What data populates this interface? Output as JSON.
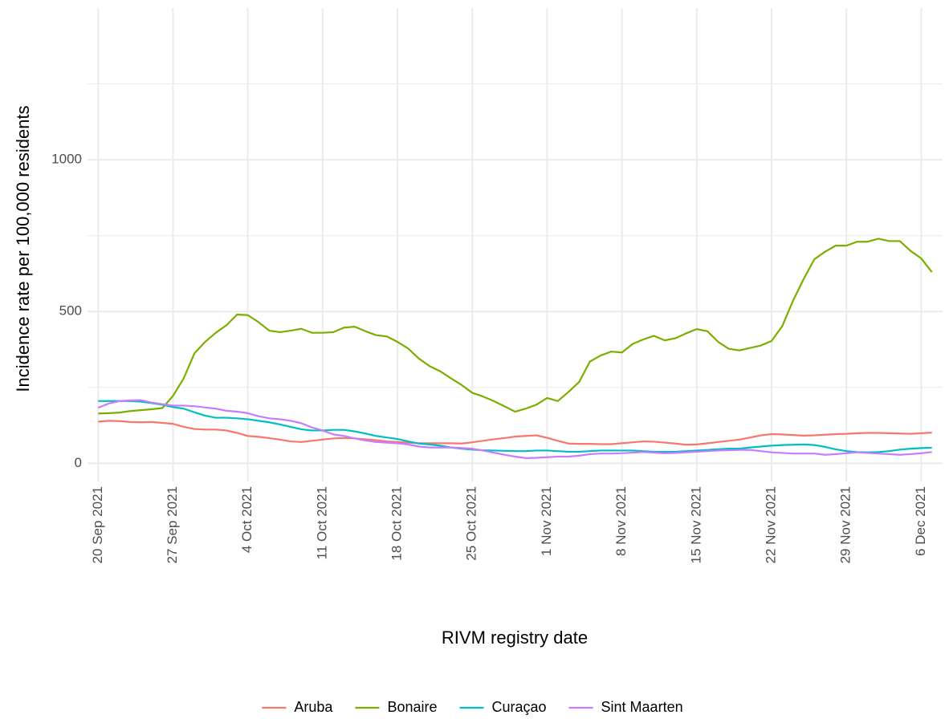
{
  "chart_data": {
    "type": "line",
    "x_label": "RIVM registry date",
    "y_label": "Incidence rate per 100,000 residents",
    "x": [
      "2021-09-20",
      "2021-09-21",
      "2021-09-22",
      "2021-09-23",
      "2021-09-24",
      "2021-09-25",
      "2021-09-26",
      "2021-09-27",
      "2021-09-28",
      "2021-09-29",
      "2021-09-30",
      "2021-10-01",
      "2021-10-02",
      "2021-10-03",
      "2021-10-04",
      "2021-10-05",
      "2021-10-06",
      "2021-10-07",
      "2021-10-08",
      "2021-10-09",
      "2021-10-10",
      "2021-10-11",
      "2021-10-12",
      "2021-10-13",
      "2021-10-14",
      "2021-10-15",
      "2021-10-16",
      "2021-10-17",
      "2021-10-18",
      "2021-10-19",
      "2021-10-20",
      "2021-10-21",
      "2021-10-22",
      "2021-10-23",
      "2021-10-24",
      "2021-10-25",
      "2021-10-26",
      "2021-10-27",
      "2021-10-28",
      "2021-10-29",
      "2021-10-30",
      "2021-10-31",
      "2021-11-01",
      "2021-11-02",
      "2021-11-03",
      "2021-11-04",
      "2021-11-05",
      "2021-11-06",
      "2021-11-07",
      "2021-11-08",
      "2021-11-09",
      "2021-11-10",
      "2021-11-11",
      "2021-11-12",
      "2021-11-13",
      "2021-11-14",
      "2021-11-15",
      "2021-11-16",
      "2021-11-17",
      "2021-11-18",
      "2021-11-19",
      "2021-11-20",
      "2021-11-21",
      "2021-11-22",
      "2021-11-23",
      "2021-11-24",
      "2021-11-25",
      "2021-11-26",
      "2021-11-27",
      "2021-11-28",
      "2021-11-29",
      "2021-11-30",
      "2021-12-01",
      "2021-12-02",
      "2021-12-03",
      "2021-12-04",
      "2021-12-05",
      "2021-12-06",
      "2021-12-07"
    ],
    "series": [
      {
        "name": "Aruba",
        "color": "#F8766D",
        "values": [
          137,
          140,
          139,
          136,
          135,
          136,
          133,
          130,
          120,
          113,
          111,
          111,
          108,
          100,
          90,
          87,
          83,
          78,
          72,
          70,
          74,
          78,
          82,
          83,
          82,
          79,
          76,
          72,
          70,
          68,
          66,
          66,
          66,
          66,
          65,
          69,
          74,
          79,
          83,
          88,
          90,
          92,
          84,
          74,
          65,
          64,
          64,
          63,
          63,
          66,
          69,
          72,
          71,
          68,
          65,
          61,
          62,
          66,
          70,
          74,
          78,
          85,
          92,
          96,
          95,
          93,
          91,
          92,
          94,
          96,
          97,
          99,
          100,
          100,
          99,
          98,
          97,
          99,
          101
        ]
      },
      {
        "name": "Bonaire",
        "color": "#7CAE00",
        "values": [
          164,
          165,
          167,
          172,
          175,
          178,
          182,
          222,
          280,
          362,
          400,
          430,
          455,
          490,
          488,
          465,
          437,
          432,
          437,
          443,
          430,
          430,
          432,
          447,
          450,
          435,
          422,
          418,
          400,
          378,
          345,
          320,
          303,
          280,
          258,
          232,
          220,
          205,
          188,
          170,
          180,
          193,
          215,
          205,
          235,
          268,
          335,
          355,
          368,
          365,
          393,
          408,
          420,
          405,
          412,
          428,
          442,
          435,
          400,
          377,
          372,
          380,
          388,
          403,
          452,
          535,
          607,
          672,
          697,
          717,
          717,
          730,
          730,
          740,
          732,
          732,
          700,
          675,
          630
        ]
      },
      {
        "name": "Curaçao",
        "color": "#00BFC4",
        "values": [
          205,
          205,
          205,
          205,
          203,
          198,
          193,
          185,
          180,
          168,
          157,
          150,
          150,
          148,
          145,
          140,
          135,
          128,
          120,
          112,
          108,
          108,
          110,
          110,
          105,
          98,
          90,
          85,
          80,
          72,
          65,
          62,
          58,
          52,
          48,
          45,
          43,
          42,
          41,
          40,
          40,
          42,
          42,
          40,
          38,
          38,
          40,
          42,
          42,
          42,
          42,
          40,
          38,
          38,
          38,
          40,
          42,
          44,
          46,
          48,
          48,
          52,
          55,
          58,
          60,
          61,
          62,
          60,
          54,
          46,
          40,
          37,
          36,
          37,
          40,
          45,
          48,
          50,
          51
        ]
      },
      {
        "name": "Sint Maarten",
        "color": "#C77CFF",
        "values": [
          183,
          197,
          205,
          207,
          208,
          200,
          195,
          190,
          190,
          188,
          184,
          180,
          173,
          170,
          165,
          155,
          148,
          145,
          140,
          132,
          118,
          108,
          95,
          90,
          82,
          75,
          70,
          68,
          66,
          62,
          55,
          52,
          52,
          52,
          50,
          48,
          42,
          35,
          28,
          22,
          17,
          18,
          20,
          22,
          22,
          25,
          30,
          32,
          32,
          33,
          35,
          37,
          35,
          33,
          34,
          36,
          38,
          40,
          42,
          43,
          44,
          44,
          40,
          36,
          34,
          32,
          32,
          32,
          28,
          30,
          33,
          36,
          34,
          32,
          30,
          28,
          30,
          33,
          37
        ]
      }
    ],
    "xlim": [
      "2021-09-19",
      "2021-12-08"
    ],
    "xticks": [
      {
        "value": "2021-09-20",
        "label": "20 Sep 2021"
      },
      {
        "value": "2021-09-27",
        "label": "27 Sep 2021"
      },
      {
        "value": "2021-10-04",
        "label": "4 Oct 2021"
      },
      {
        "value": "2021-10-11",
        "label": "11 Oct 2021"
      },
      {
        "value": "2021-10-18",
        "label": "18 Oct 2021"
      },
      {
        "value": "2021-10-25",
        "label": "25 Oct 2021"
      },
      {
        "value": "2021-11-01",
        "label": "1 Nov 2021"
      },
      {
        "value": "2021-11-08",
        "label": "8 Nov 2021"
      },
      {
        "value": "2021-11-15",
        "label": "15 Nov 2021"
      },
      {
        "value": "2021-11-22",
        "label": "22 Nov 2021"
      },
      {
        "value": "2021-11-29",
        "label": "29 Nov 2021"
      },
      {
        "value": "2021-12-06",
        "label": "6 Dec 2021"
      }
    ],
    "ylim": [
      -60,
      1500
    ],
    "yticks": [
      0,
      500,
      1000
    ],
    "y_minor_ticks": [
      250,
      750,
      1250
    ],
    "grid": true,
    "legend": "bottom"
  }
}
